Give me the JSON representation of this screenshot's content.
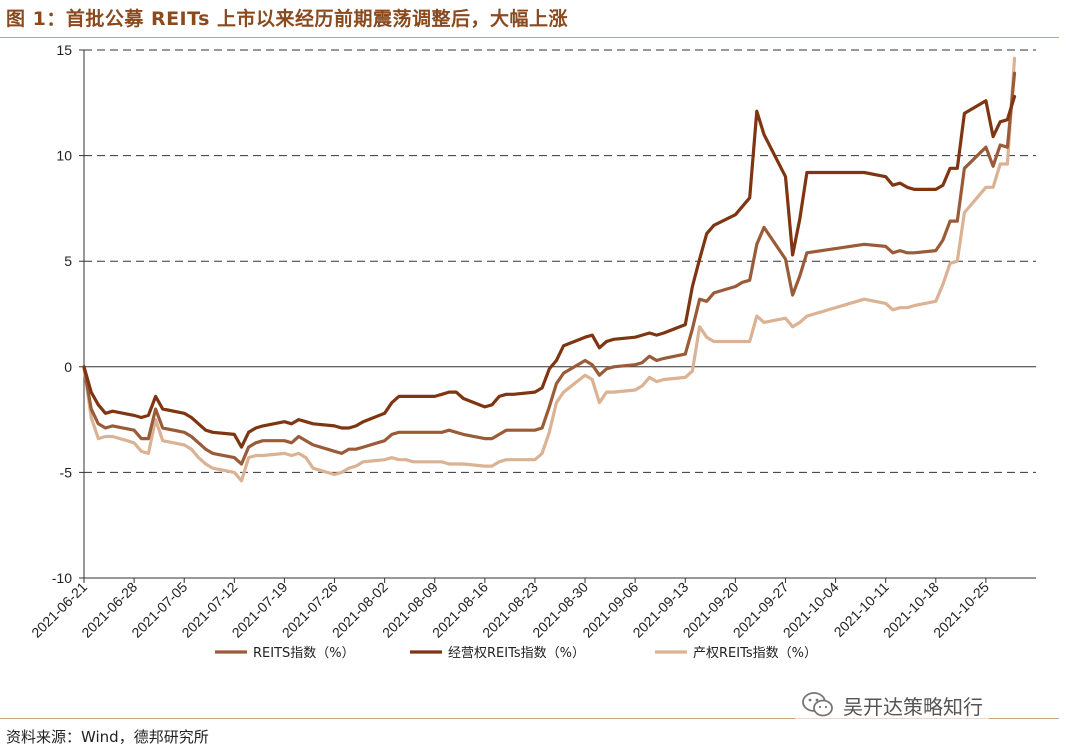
{
  "figure_title": "图 1：首批公募 REITs 上市以来经历前期震荡调整后，大幅上涨",
  "source_note": "资料来源：Wind，德邦研究所",
  "watermark": {
    "text": "吴开达策略知行",
    "icon": "wechat-icon"
  },
  "colors": {
    "title": "#8a4a1e",
    "rule": "#c9a27f",
    "REITS指数": "#9a5b39",
    "经营权REITs指数": "#7f3511",
    "产权REITs指数": "#dbb293"
  },
  "chart_data": {
    "type": "line",
    "title": "",
    "xlabel": "",
    "ylabel": "",
    "ylim": [
      -10,
      15
    ],
    "yticks": [
      "-10",
      "-5",
      "0",
      "5",
      "10",
      "15"
    ],
    "grid": "horizontal dashed",
    "legend_position": "bottom",
    "x_ticks": [
      "2021-06-21",
      "2021-06-28",
      "2021-07-05",
      "2021-07-12",
      "2021-07-19",
      "2021-07-26",
      "2021-08-02",
      "2021-08-09",
      "2021-08-16",
      "2021-08-23",
      "2021-08-30",
      "2021-09-06",
      "2021-09-13",
      "2021-09-20",
      "2021-09-27",
      "2021-10-04",
      "2021-10-11",
      "2021-10-18",
      "2021-10-25"
    ],
    "x_start": "2021-06-21",
    "x_end": "2021-11-01",
    "series": [
      {
        "name": "REITS指数（%）",
        "color_key": "REITS指数",
        "points": [
          [
            "2021-06-21",
            0
          ],
          [
            "2021-06-22",
            -2.0
          ],
          [
            "2021-06-23",
            -2.7
          ],
          [
            "2021-06-24",
            -2.9
          ],
          [
            "2021-06-25",
            -2.8
          ],
          [
            "2021-06-28",
            -3.0
          ],
          [
            "2021-06-29",
            -3.4
          ],
          [
            "2021-06-30",
            -3.4
          ],
          [
            "2021-07-01",
            -2.0
          ],
          [
            "2021-07-02",
            -2.9
          ],
          [
            "2021-07-05",
            -3.1
          ],
          [
            "2021-07-06",
            -3.3
          ],
          [
            "2021-07-07",
            -3.6
          ],
          [
            "2021-07-08",
            -3.9
          ],
          [
            "2021-07-09",
            -4.1
          ],
          [
            "2021-07-12",
            -4.3
          ],
          [
            "2021-07-13",
            -4.6
          ],
          [
            "2021-07-14",
            -3.8
          ],
          [
            "2021-07-15",
            -3.6
          ],
          [
            "2021-07-16",
            -3.5
          ],
          [
            "2021-07-19",
            -3.5
          ],
          [
            "2021-07-20",
            -3.6
          ],
          [
            "2021-07-21",
            -3.3
          ],
          [
            "2021-07-22",
            -3.5
          ],
          [
            "2021-07-23",
            -3.7
          ],
          [
            "2021-07-26",
            -4.0
          ],
          [
            "2021-07-27",
            -4.1
          ],
          [
            "2021-07-28",
            -3.9
          ],
          [
            "2021-07-29",
            -3.9
          ],
          [
            "2021-07-30",
            -3.8
          ],
          [
            "2021-08-02",
            -3.5
          ],
          [
            "2021-08-03",
            -3.2
          ],
          [
            "2021-08-04",
            -3.1
          ],
          [
            "2021-08-05",
            -3.1
          ],
          [
            "2021-08-06",
            -3.1
          ],
          [
            "2021-08-09",
            -3.1
          ],
          [
            "2021-08-10",
            -3.1
          ],
          [
            "2021-08-11",
            -3.0
          ],
          [
            "2021-08-12",
            -3.1
          ],
          [
            "2021-08-13",
            -3.2
          ],
          [
            "2021-08-16",
            -3.4
          ],
          [
            "2021-08-17",
            -3.4
          ],
          [
            "2021-08-18",
            -3.2
          ],
          [
            "2021-08-19",
            -3.0
          ],
          [
            "2021-08-20",
            -3.0
          ],
          [
            "2021-08-23",
            -3.0
          ],
          [
            "2021-08-24",
            -2.9
          ],
          [
            "2021-08-25",
            -1.9
          ],
          [
            "2021-08-26",
            -0.8
          ],
          [
            "2021-08-27",
            -0.3
          ],
          [
            "2021-08-30",
            0.3
          ],
          [
            "2021-08-31",
            0.1
          ],
          [
            "2021-09-01",
            -0.4
          ],
          [
            "2021-09-02",
            -0.1
          ],
          [
            "2021-09-03",
            0.0
          ],
          [
            "2021-09-06",
            0.1
          ],
          [
            "2021-09-07",
            0.2
          ],
          [
            "2021-09-08",
            0.5
          ],
          [
            "2021-09-09",
            0.3
          ],
          [
            "2021-09-10",
            0.4
          ],
          [
            "2021-09-13",
            0.6
          ],
          [
            "2021-09-14",
            1.8
          ],
          [
            "2021-09-15",
            3.2
          ],
          [
            "2021-09-16",
            3.1
          ],
          [
            "2021-09-17",
            3.5
          ],
          [
            "2021-09-20",
            3.8
          ],
          [
            "2021-09-21",
            4.0
          ],
          [
            "2021-09-22",
            4.1
          ],
          [
            "2021-09-23",
            5.8
          ],
          [
            "2021-09-24",
            6.6
          ],
          [
            "2021-09-27",
            5.1
          ],
          [
            "2021-09-28",
            3.4
          ],
          [
            "2021-09-29",
            4.3
          ],
          [
            "2021-09-30",
            5.4
          ],
          [
            "2021-10-08",
            5.8
          ],
          [
            "2021-10-11",
            5.7
          ],
          [
            "2021-10-12",
            5.4
          ],
          [
            "2021-10-13",
            5.5
          ],
          [
            "2021-10-14",
            5.4
          ],
          [
            "2021-10-15",
            5.4
          ],
          [
            "2021-10-18",
            5.5
          ],
          [
            "2021-10-19",
            6.0
          ],
          [
            "2021-10-20",
            6.9
          ],
          [
            "2021-10-21",
            6.9
          ],
          [
            "2021-10-22",
            9.4
          ],
          [
            "2021-10-25",
            10.4
          ],
          [
            "2021-10-26",
            9.5
          ],
          [
            "2021-10-27",
            10.5
          ],
          [
            "2021-10-28",
            10.4
          ],
          [
            "2021-10-29",
            13.9
          ]
        ]
      },
      {
        "name": "经营权REITs指数（%）",
        "color_key": "经营权REITs指数",
        "points": [
          [
            "2021-06-21",
            0
          ],
          [
            "2021-06-22",
            -1.2
          ],
          [
            "2021-06-23",
            -1.8
          ],
          [
            "2021-06-24",
            -2.2
          ],
          [
            "2021-06-25",
            -2.1
          ],
          [
            "2021-06-28",
            -2.3
          ],
          [
            "2021-06-29",
            -2.4
          ],
          [
            "2021-06-30",
            -2.3
          ],
          [
            "2021-07-01",
            -1.4
          ],
          [
            "2021-07-02",
            -2.0
          ],
          [
            "2021-07-05",
            -2.2
          ],
          [
            "2021-07-06",
            -2.4
          ],
          [
            "2021-07-07",
            -2.7
          ],
          [
            "2021-07-08",
            -3.0
          ],
          [
            "2021-07-09",
            -3.1
          ],
          [
            "2021-07-12",
            -3.2
          ],
          [
            "2021-07-13",
            -3.8
          ],
          [
            "2021-07-14",
            -3.1
          ],
          [
            "2021-07-15",
            -2.9
          ],
          [
            "2021-07-16",
            -2.8
          ],
          [
            "2021-07-19",
            -2.6
          ],
          [
            "2021-07-20",
            -2.7
          ],
          [
            "2021-07-21",
            -2.5
          ],
          [
            "2021-07-22",
            -2.6
          ],
          [
            "2021-07-23",
            -2.7
          ],
          [
            "2021-07-26",
            -2.8
          ],
          [
            "2021-07-27",
            -2.9
          ],
          [
            "2021-07-28",
            -2.9
          ],
          [
            "2021-07-29",
            -2.8
          ],
          [
            "2021-07-30",
            -2.6
          ],
          [
            "2021-08-02",
            -2.2
          ],
          [
            "2021-08-03",
            -1.7
          ],
          [
            "2021-08-04",
            -1.4
          ],
          [
            "2021-08-05",
            -1.4
          ],
          [
            "2021-08-06",
            -1.4
          ],
          [
            "2021-08-09",
            -1.4
          ],
          [
            "2021-08-10",
            -1.3
          ],
          [
            "2021-08-11",
            -1.2
          ],
          [
            "2021-08-12",
            -1.2
          ],
          [
            "2021-08-13",
            -1.5
          ],
          [
            "2021-08-16",
            -1.9
          ],
          [
            "2021-08-17",
            -1.8
          ],
          [
            "2021-08-18",
            -1.4
          ],
          [
            "2021-08-19",
            -1.3
          ],
          [
            "2021-08-20",
            -1.3
          ],
          [
            "2021-08-23",
            -1.2
          ],
          [
            "2021-08-24",
            -1.0
          ],
          [
            "2021-08-25",
            -0.1
          ],
          [
            "2021-08-26",
            0.3
          ],
          [
            "2021-08-27",
            1.0
          ],
          [
            "2021-08-30",
            1.4
          ],
          [
            "2021-08-31",
            1.5
          ],
          [
            "2021-09-01",
            0.9
          ],
          [
            "2021-09-02",
            1.2
          ],
          [
            "2021-09-03",
            1.3
          ],
          [
            "2021-09-06",
            1.4
          ],
          [
            "2021-09-07",
            1.5
          ],
          [
            "2021-09-08",
            1.6
          ],
          [
            "2021-09-09",
            1.5
          ],
          [
            "2021-09-10",
            1.6
          ],
          [
            "2021-09-13",
            2.0
          ],
          [
            "2021-09-14",
            3.8
          ],
          [
            "2021-09-15",
            5.1
          ],
          [
            "2021-09-16",
            6.3
          ],
          [
            "2021-09-17",
            6.7
          ],
          [
            "2021-09-20",
            7.2
          ],
          [
            "2021-09-21",
            7.6
          ],
          [
            "2021-09-22",
            8.0
          ],
          [
            "2021-09-23",
            12.1
          ],
          [
            "2021-09-24",
            11.0
          ],
          [
            "2021-09-27",
            9.0
          ],
          [
            "2021-09-28",
            5.3
          ],
          [
            "2021-09-29",
            7.0
          ],
          [
            "2021-09-30",
            9.2
          ],
          [
            "2021-10-08",
            9.2
          ],
          [
            "2021-10-11",
            9.0
          ],
          [
            "2021-10-12",
            8.6
          ],
          [
            "2021-10-13",
            8.7
          ],
          [
            "2021-10-14",
            8.5
          ],
          [
            "2021-10-15",
            8.4
          ],
          [
            "2021-10-18",
            8.4
          ],
          [
            "2021-10-19",
            8.6
          ],
          [
            "2021-10-20",
            9.4
          ],
          [
            "2021-10-21",
            9.4
          ],
          [
            "2021-10-22",
            12.0
          ],
          [
            "2021-10-25",
            12.6
          ],
          [
            "2021-10-26",
            10.9
          ],
          [
            "2021-10-27",
            11.6
          ],
          [
            "2021-10-28",
            11.7
          ],
          [
            "2021-10-29",
            12.8
          ]
        ]
      },
      {
        "name": "产权REITs指数（%）",
        "color_key": "产权REITs指数",
        "points": [
          [
            "2021-06-21",
            0
          ],
          [
            "2021-06-22",
            -2.4
          ],
          [
            "2021-06-23",
            -3.4
          ],
          [
            "2021-06-24",
            -3.3
          ],
          [
            "2021-06-25",
            -3.3
          ],
          [
            "2021-06-28",
            -3.6
          ],
          [
            "2021-06-29",
            -4.0
          ],
          [
            "2021-06-30",
            -4.1
          ],
          [
            "2021-07-01",
            -2.5
          ],
          [
            "2021-07-02",
            -3.5
          ],
          [
            "2021-07-05",
            -3.7
          ],
          [
            "2021-07-06",
            -3.9
          ],
          [
            "2021-07-07",
            -4.3
          ],
          [
            "2021-07-08",
            -4.6
          ],
          [
            "2021-07-09",
            -4.8
          ],
          [
            "2021-07-12",
            -5.0
          ],
          [
            "2021-07-13",
            -5.4
          ],
          [
            "2021-07-14",
            -4.3
          ],
          [
            "2021-07-15",
            -4.2
          ],
          [
            "2021-07-16",
            -4.2
          ],
          [
            "2021-07-19",
            -4.1
          ],
          [
            "2021-07-20",
            -4.2
          ],
          [
            "2021-07-21",
            -4.1
          ],
          [
            "2021-07-22",
            -4.3
          ],
          [
            "2021-07-23",
            -4.8
          ],
          [
            "2021-07-26",
            -5.1
          ],
          [
            "2021-07-27",
            -5.0
          ],
          [
            "2021-07-28",
            -4.8
          ],
          [
            "2021-07-29",
            -4.7
          ],
          [
            "2021-07-30",
            -4.5
          ],
          [
            "2021-08-02",
            -4.4
          ],
          [
            "2021-08-03",
            -4.3
          ],
          [
            "2021-08-04",
            -4.4
          ],
          [
            "2021-08-05",
            -4.4
          ],
          [
            "2021-08-06",
            -4.5
          ],
          [
            "2021-08-09",
            -4.5
          ],
          [
            "2021-08-10",
            -4.5
          ],
          [
            "2021-08-11",
            -4.6
          ],
          [
            "2021-08-12",
            -4.6
          ],
          [
            "2021-08-13",
            -4.6
          ],
          [
            "2021-08-16",
            -4.7
          ],
          [
            "2021-08-17",
            -4.7
          ],
          [
            "2021-08-18",
            -4.5
          ],
          [
            "2021-08-19",
            -4.4
          ],
          [
            "2021-08-20",
            -4.4
          ],
          [
            "2021-08-23",
            -4.4
          ],
          [
            "2021-08-24",
            -4.1
          ],
          [
            "2021-08-25",
            -3.1
          ],
          [
            "2021-08-26",
            -1.7
          ],
          [
            "2021-08-27",
            -1.2
          ],
          [
            "2021-08-30",
            -0.4
          ],
          [
            "2021-08-31",
            -0.6
          ],
          [
            "2021-09-01",
            -1.7
          ],
          [
            "2021-09-02",
            -1.2
          ],
          [
            "2021-09-03",
            -1.2
          ],
          [
            "2021-09-06",
            -1.1
          ],
          [
            "2021-09-07",
            -0.9
          ],
          [
            "2021-09-08",
            -0.5
          ],
          [
            "2021-09-09",
            -0.7
          ],
          [
            "2021-09-10",
            -0.6
          ],
          [
            "2021-09-13",
            -0.5
          ],
          [
            "2021-09-14",
            -0.2
          ],
          [
            "2021-09-15",
            1.9
          ],
          [
            "2021-09-16",
            1.4
          ],
          [
            "2021-09-17",
            1.2
          ],
          [
            "2021-09-20",
            1.2
          ],
          [
            "2021-09-21",
            1.2
          ],
          [
            "2021-09-22",
            1.2
          ],
          [
            "2021-09-23",
            2.4
          ],
          [
            "2021-09-24",
            2.1
          ],
          [
            "2021-09-27",
            2.3
          ],
          [
            "2021-09-28",
            1.9
          ],
          [
            "2021-09-29",
            2.1
          ],
          [
            "2021-09-30",
            2.4
          ],
          [
            "2021-10-08",
            3.2
          ],
          [
            "2021-10-11",
            3.0
          ],
          [
            "2021-10-12",
            2.7
          ],
          [
            "2021-10-13",
            2.8
          ],
          [
            "2021-10-14",
            2.8
          ],
          [
            "2021-10-15",
            2.9
          ],
          [
            "2021-10-18",
            3.1
          ],
          [
            "2021-10-19",
            3.9
          ],
          [
            "2021-10-20",
            4.9
          ],
          [
            "2021-10-21",
            5.0
          ],
          [
            "2021-10-22",
            7.3
          ],
          [
            "2021-10-25",
            8.5
          ],
          [
            "2021-10-26",
            8.5
          ],
          [
            "2021-10-27",
            9.6
          ],
          [
            "2021-10-28",
            9.6
          ],
          [
            "2021-10-29",
            14.6
          ]
        ]
      }
    ]
  }
}
